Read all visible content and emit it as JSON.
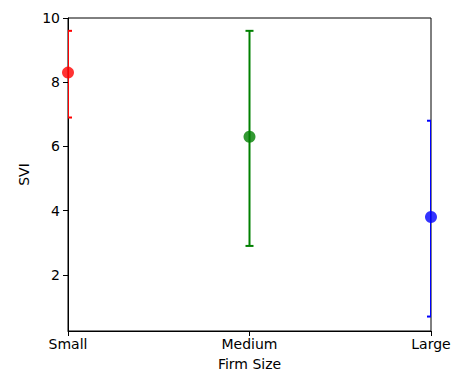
{
  "chart_data": {
    "type": "errorbar",
    "x_label": "Firm Size",
    "y_label": "SVI",
    "categories": [
      "Small",
      "Medium",
      "Large"
    ],
    "values": [
      8.3,
      6.3,
      3.8
    ],
    "lower_bounds": [
      6.9,
      2.9,
      0.7
    ],
    "upper_bounds": [
      9.6,
      9.6,
      6.8
    ],
    "colors": [
      "#ff0000",
      "#008000",
      "#0000ff"
    ],
    "marker": "circle",
    "ylim": [
      0.25,
      10
    ],
    "yticks": [
      2,
      4,
      6,
      8,
      10
    ],
    "grid": false
  }
}
